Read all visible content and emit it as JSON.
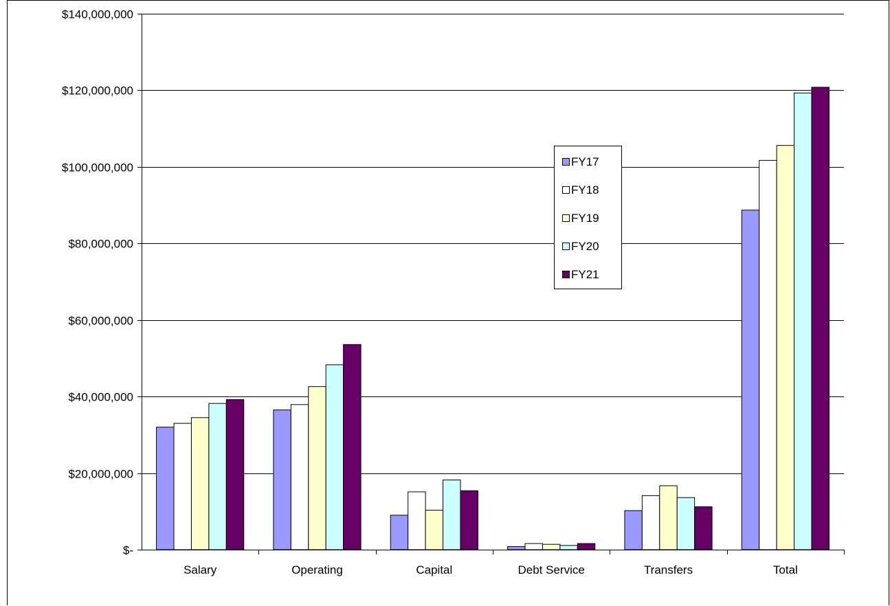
{
  "chart_data": {
    "type": "bar",
    "title": "",
    "xlabel": "",
    "ylabel": "",
    "categories": [
      "Salary",
      "Operating",
      "Capital",
      "Debt Service",
      "Transfers",
      "Total"
    ],
    "ylim": [
      0,
      140000000
    ],
    "y_ticks": [
      0,
      20000000,
      40000000,
      60000000,
      80000000,
      100000000,
      120000000,
      140000000
    ],
    "y_tick_labels": [
      "$-",
      "$20,000,000",
      "$40,000,000",
      "$60,000,000",
      "$80,000,000",
      "$100,000,000",
      "$120,000,000",
      "$140,000,000"
    ],
    "grid": true,
    "legend_position": "center-right",
    "series": [
      {
        "name": "FY17",
        "color": "#9999ff",
        "values": [
          32000000,
          36500000,
          9000000,
          800000,
          10200000,
          88700000
        ]
      },
      {
        "name": "FY18",
        "color": "#ffffff",
        "values": [
          33000000,
          37900000,
          15100000,
          1600000,
          14100000,
          101700000
        ]
      },
      {
        "name": "FY19",
        "color": "#ffffcc",
        "values": [
          34500000,
          42600000,
          10300000,
          1400000,
          16700000,
          105600000
        ]
      },
      {
        "name": "FY20",
        "color": "#ccffff",
        "values": [
          38200000,
          48300000,
          18200000,
          1100000,
          13600000,
          119300000
        ]
      },
      {
        "name": "FY21",
        "color": "#660066",
        "values": [
          39200000,
          53600000,
          15400000,
          1600000,
          11200000,
          120800000
        ]
      }
    ]
  }
}
